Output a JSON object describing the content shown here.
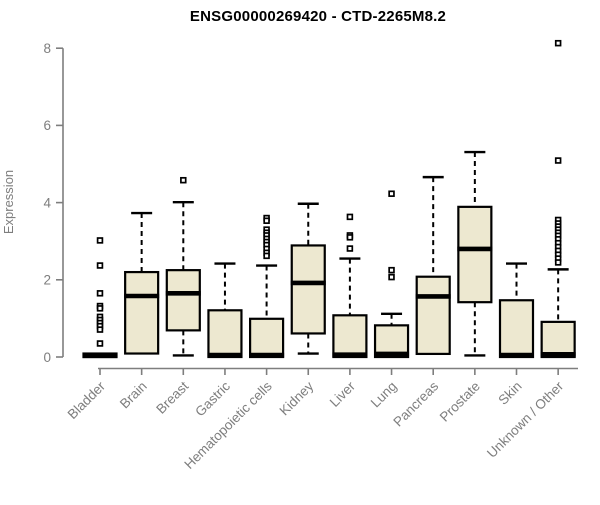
{
  "title": "ENSG00000269420 - CTD-2265M8.2",
  "chart_data": {
    "type": "boxplot",
    "title": "ENSG00000269420 - CTD-2265M8.2",
    "xlabel": "",
    "ylabel": "Expression",
    "ylim": [
      0,
      8
    ],
    "yticks": [
      0,
      2,
      4,
      6,
      8
    ],
    "grid": false,
    "legend": "none",
    "categories": [
      "Bladder",
      "Brain",
      "Breast",
      "Gastric",
      "Hematopoietic cells",
      "Kidney",
      "Liver",
      "Lung",
      "Pancreas",
      "Prostate",
      "Skin",
      "Unknown / Other"
    ],
    "series": [
      {
        "category": "Bladder",
        "low": 0,
        "q1": 0,
        "median": 0.03,
        "q3": 0.09,
        "high": 0.09,
        "outliers": [
          3.02,
          2.37,
          1.65,
          1.32,
          1.26,
          1.04,
          0.96,
          0.88,
          0.8,
          0.71,
          0.35
        ]
      },
      {
        "category": "Brain",
        "low": 0.05,
        "q1": 0.09,
        "median": 1.58,
        "q3": 2.2,
        "high": 3.73,
        "outliers": []
      },
      {
        "category": "Breast",
        "low": 0.04,
        "q1": 0.69,
        "median": 1.65,
        "q3": 2.25,
        "high": 4.01,
        "outliers": [
          4.58
        ]
      },
      {
        "category": "Gastric",
        "low": 0,
        "q1": 0,
        "median": 0.05,
        "q3": 1.21,
        "high": 2.42,
        "outliers": []
      },
      {
        "category": "Hematopoietic cells",
        "low": 0,
        "q1": 0,
        "median": 0.05,
        "q3": 0.99,
        "high": 2.37,
        "outliers": [
          3.6,
          3.53,
          3.3,
          3.22,
          3.15,
          3.06,
          2.98,
          2.9,
          2.8,
          2.7,
          2.62
        ]
      },
      {
        "category": "Kidney",
        "low": 0.09,
        "q1": 0.61,
        "median": 1.92,
        "q3": 2.89,
        "high": 3.97,
        "outliers": []
      },
      {
        "category": "Liver",
        "low": 0,
        "q1": 0,
        "median": 0.06,
        "q3": 1.08,
        "high": 2.55,
        "outliers": [
          3.63,
          3.15,
          3.1,
          2.81
        ]
      },
      {
        "category": "Lung",
        "low": 0,
        "q1": 0,
        "median": 0.08,
        "q3": 0.82,
        "high": 1.12,
        "outliers": [
          4.23,
          2.25,
          2.07
        ]
      },
      {
        "category": "Pancreas",
        "low": 0.04,
        "q1": 0.08,
        "median": 1.57,
        "q3": 2.08,
        "high": 4.66,
        "outliers": []
      },
      {
        "category": "Prostate",
        "low": 0.04,
        "q1": 1.42,
        "median": 2.8,
        "q3": 3.89,
        "high": 5.31,
        "outliers": []
      },
      {
        "category": "Skin",
        "low": 0,
        "q1": 0,
        "median": 0.05,
        "q3": 1.47,
        "high": 2.42,
        "outliers": []
      },
      {
        "category": "Unknown / Other",
        "low": 0,
        "q1": 0,
        "median": 0.07,
        "q3": 0.91,
        "high": 2.27,
        "outliers": [
          8.13,
          5.09,
          3.55,
          3.46,
          3.38,
          3.3,
          3.22,
          3.14,
          3.05,
          2.95,
          2.85,
          2.75,
          2.65,
          2.55,
          2.45
        ]
      }
    ],
    "colors": {
      "box_fill": "#EDE8D0",
      "box_border": "#000000",
      "median": "#000000",
      "whisker": "#000000",
      "outlier_stroke": "#000000",
      "outlier_fill": "#ffffff",
      "axis": "#7e7e7e",
      "tick_label": "#7e7e7e",
      "title": "#000000",
      "background": "#ffffff"
    }
  }
}
